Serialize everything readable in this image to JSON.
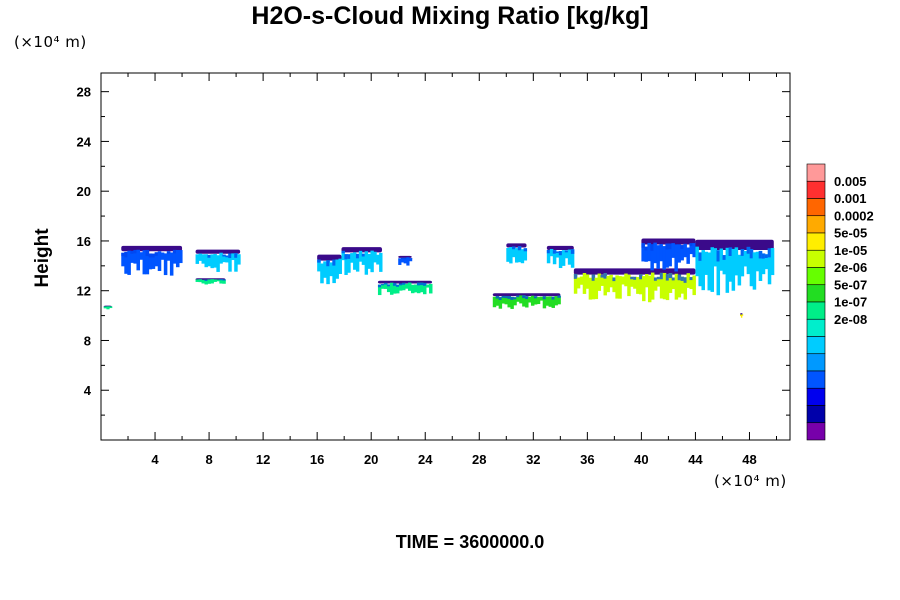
{
  "title": "H2O-s-Cloud Mixing Ratio [kg/kg]",
  "y_unit": "(×10⁴ m)",
  "x_unit": "(×10⁴ m)",
  "ylabel": "Height",
  "time_label": "TIME = 3600000.0",
  "chart_data": {
    "type": "heatmap",
    "title": "H2O-s-Cloud Mixing Ratio [kg/kg]",
    "ylabel": "Height",
    "xlim": [
      0,
      51
    ],
    "ylim": [
      0,
      29.5
    ],
    "x_ticks": [
      4,
      8,
      12,
      16,
      20,
      24,
      28,
      32,
      36,
      40,
      44,
      48
    ],
    "y_ticks": [
      4,
      8,
      12,
      16,
      20,
      24,
      28
    ],
    "colorbar": {
      "labels": [
        "0.005",
        "0.001",
        "0.0002",
        "5e-05",
        "1e-05",
        "2e-06",
        "5e-07",
        "1e-07",
        "2e-08"
      ],
      "colors": [
        "#ff9999",
        "#ff3030",
        "#ff6600",
        "#ffaa00",
        "#ffee00",
        "#c8ff00",
        "#66ff00",
        "#22dd22",
        "#00ee88",
        "#00eecc",
        "#00ccff",
        "#0099ff",
        "#0055ff",
        "#0000ee",
        "#0000aa",
        "#7700aa"
      ]
    },
    "cloud_regions": [
      {
        "x": [
          1.5,
          6.0
        ],
        "y": [
          13.2,
          15.6
        ],
        "level": "1e-07"
      },
      {
        "x": [
          7.0,
          10.3
        ],
        "y": [
          13.5,
          15.3
        ],
        "level": "5e-07"
      },
      {
        "x": [
          7.0,
          9.2
        ],
        "y": [
          12.5,
          13.0
        ],
        "level": "2e-06"
      },
      {
        "x": [
          0.2,
          0.8
        ],
        "y": [
          10.4,
          10.8
        ],
        "level": "2e-06"
      },
      {
        "x": [
          16.0,
          17.8
        ],
        "y": [
          12.2,
          14.9
        ],
        "level": "5e-07"
      },
      {
        "x": [
          17.8,
          20.8
        ],
        "y": [
          13.2,
          15.5
        ],
        "level": "5e-07"
      },
      {
        "x": [
          20.5,
          24.5
        ],
        "y": [
          11.6,
          12.8
        ],
        "level": "2e-06"
      },
      {
        "x": [
          22.0,
          23.0
        ],
        "y": [
          14.0,
          14.8
        ],
        "level": "1e-07"
      },
      {
        "x": [
          29.0,
          34.0
        ],
        "y": [
          10.5,
          11.8
        ],
        "level": "1e-05"
      },
      {
        "x": [
          30.0,
          31.5
        ],
        "y": [
          14.0,
          15.8
        ],
        "level": "5e-07"
      },
      {
        "x": [
          33.0,
          35.0
        ],
        "y": [
          13.8,
          15.6
        ],
        "level": "5e-07"
      },
      {
        "x": [
          35.0,
          44.0
        ],
        "y": [
          11.0,
          13.8
        ],
        "level": "5e-05"
      },
      {
        "x": [
          40.0,
          44.0
        ],
        "y": [
          13.5,
          16.2
        ],
        "level": "1e-07"
      },
      {
        "x": [
          44.0,
          49.8
        ],
        "y": [
          11.5,
          16.1
        ],
        "level": "5e-07"
      },
      {
        "x": [
          47.3,
          47.5
        ],
        "y": [
          9.8,
          10.2
        ],
        "level": "0.0002"
      }
    ]
  }
}
